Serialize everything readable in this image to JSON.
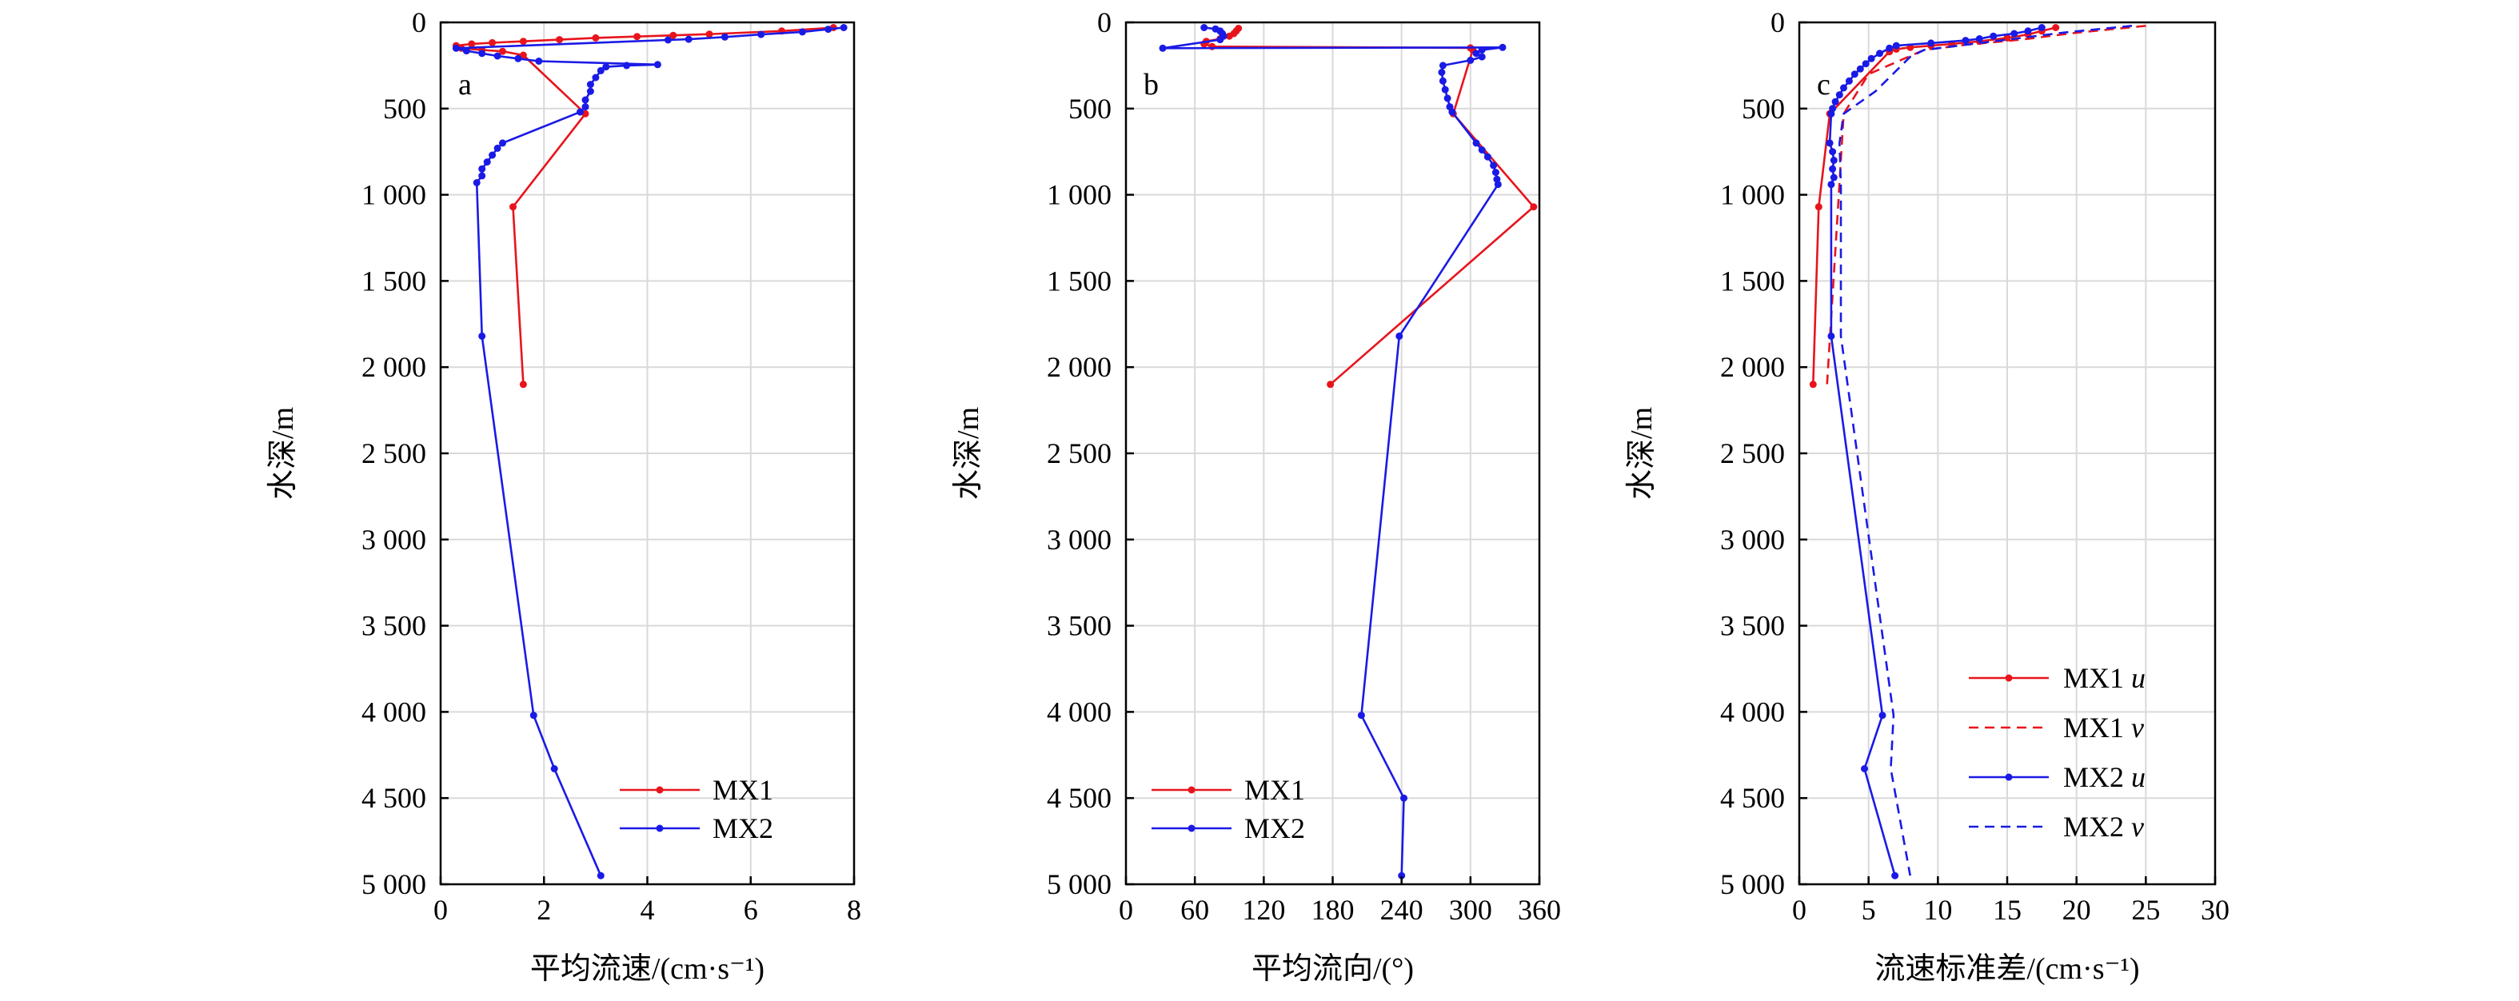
{
  "chart_data": [
    {
      "type": "line",
      "panel_label": "a",
      "xlabel": "平均流速/(cm·s⁻¹)",
      "ylabel": "水深/m",
      "xlim": [
        0,
        8
      ],
      "ylim": [
        0,
        5000
      ],
      "y_inverted": true,
      "grid": true,
      "legend_position": "bottom-right",
      "x_ticks": [
        0,
        2,
        4,
        6,
        8
      ],
      "x_tick_labels": [
        "0",
        "2",
        "4",
        "6",
        "8"
      ],
      "y_ticks": [
        0,
        500,
        1000,
        1500,
        2000,
        2500,
        3000,
        3500,
        4000,
        4500,
        5000
      ],
      "y_tick_labels": [
        "0",
        "500",
        "1 000",
        "1 500",
        "2 000",
        "2 500",
        "3 000",
        "3 500",
        "4 000",
        "4 500",
        "5 000"
      ],
      "series": [
        {
          "name": "MX1",
          "color": "#e8141c",
          "dash": false,
          "marker": true,
          "points": [
            [
              7.6,
              30
            ],
            [
              6.6,
              50
            ],
            [
              5.2,
              68
            ],
            [
              4.5,
              75
            ],
            [
              3.8,
              82
            ],
            [
              3.0,
              90
            ],
            [
              2.3,
              100
            ],
            [
              1.6,
              110
            ],
            [
              1.0,
              118
            ],
            [
              0.6,
              125
            ],
            [
              0.3,
              135
            ],
            [
              0.4,
              150
            ],
            [
              0.8,
              160
            ],
            [
              1.2,
              168
            ],
            [
              1.6,
              190
            ],
            [
              2.8,
              530
            ],
            [
              1.4,
              1070
            ],
            [
              1.6,
              2100
            ]
          ]
        },
        {
          "name": "MX2",
          "color": "#1a1ae6",
          "dash": false,
          "marker": true,
          "points": [
            [
              7.8,
              30
            ],
            [
              7.5,
              40
            ],
            [
              7.0,
              55
            ],
            [
              6.2,
              70
            ],
            [
              5.5,
              85
            ],
            [
              4.8,
              98
            ],
            [
              4.4,
              102
            ],
            [
              0.3,
              150
            ],
            [
              0.5,
              165
            ],
            [
              0.8,
              180
            ],
            [
              1.1,
              195
            ],
            [
              1.5,
              210
            ],
            [
              1.9,
              225
            ],
            [
              4.2,
              245
            ],
            [
              3.6,
              250
            ],
            [
              3.2,
              258
            ],
            [
              3.1,
              280
            ],
            [
              3.0,
              320
            ],
            [
              2.9,
              360
            ],
            [
              2.9,
              400
            ],
            [
              2.8,
              450
            ],
            [
              2.8,
              490
            ],
            [
              2.7,
              520
            ],
            [
              1.2,
              700
            ],
            [
              1.1,
              730
            ],
            [
              1.0,
              770
            ],
            [
              0.9,
              810
            ],
            [
              0.8,
              850
            ],
            [
              0.8,
              890
            ],
            [
              0.7,
              930
            ],
            [
              0.8,
              1820
            ],
            [
              1.8,
              4020
            ],
            [
              2.2,
              4330
            ],
            [
              3.1,
              4950
            ]
          ]
        }
      ]
    },
    {
      "type": "line",
      "panel_label": "b",
      "xlabel": "平均流向/(°)",
      "ylabel": "水深/m",
      "xlim": [
        0,
        360
      ],
      "ylim": [
        0,
        5000
      ],
      "y_inverted": true,
      "grid": true,
      "legend_position": "bottom-left",
      "x_ticks": [
        0,
        60,
        120,
        180,
        240,
        300,
        360
      ],
      "x_tick_labels": [
        "0",
        "60",
        "120",
        "180",
        "240",
        "300",
        "360"
      ],
      "y_ticks": [
        0,
        500,
        1000,
        1500,
        2000,
        2500,
        3000,
        3500,
        4000,
        4500,
        5000
      ],
      "y_tick_labels": [
        "0",
        "500",
        "1 000",
        "1 500",
        "2 000",
        "2 500",
        "3 000",
        "3 500",
        "4 000",
        "4 500",
        "5 000"
      ],
      "series": [
        {
          "name": "MX1",
          "color": "#e8141c",
          "dash": false,
          "marker": true,
          "points": [
            [
              98,
              35
            ],
            [
              96,
              50
            ],
            [
              94,
              65
            ],
            [
              90,
              80
            ],
            [
              82,
              95
            ],
            [
              70,
              110
            ],
            [
              68,
              125
            ],
            [
              75,
              140
            ],
            [
              300,
              148
            ],
            [
              302,
              160
            ],
            [
              285,
              530
            ],
            [
              355,
              1070
            ],
            [
              178,
              2100
            ]
          ]
        },
        {
          "name": "MX2",
          "color": "#1a1ae6",
          "dash": false,
          "marker": true,
          "points": [
            [
              68,
              30
            ],
            [
              78,
              38
            ],
            [
              82,
              50
            ],
            [
              84,
              65
            ],
            [
              85,
              80
            ],
            [
              82,
              100
            ],
            [
              32,
              150
            ],
            [
              328,
              145
            ],
            [
              310,
              160
            ],
            [
              305,
              180
            ],
            [
              310,
              200
            ],
            [
              300,
              220
            ],
            [
              276,
              250
            ],
            [
              275,
              290
            ],
            [
              276,
              340
            ],
            [
              278,
              390
            ],
            [
              280,
              440
            ],
            [
              282,
              490
            ],
            [
              284,
              520
            ],
            [
              305,
              700
            ],
            [
              310,
              740
            ],
            [
              315,
              780
            ],
            [
              320,
              830
            ],
            [
              322,
              870
            ],
            [
              323,
              910
            ],
            [
              324,
              940
            ],
            [
              238,
              1820
            ],
            [
              205,
              4020
            ],
            [
              242,
              4500
            ],
            [
              240,
              4950
            ]
          ]
        }
      ]
    },
    {
      "type": "line",
      "panel_label": "c",
      "xlabel": "流速标准差/(cm·s⁻¹)",
      "ylabel": "水深/m",
      "xlim": [
        0,
        30
      ],
      "ylim": [
        0,
        5000
      ],
      "y_inverted": true,
      "grid": true,
      "legend_position": "bottom-right",
      "x_ticks": [
        0,
        5,
        10,
        15,
        20,
        25,
        30
      ],
      "x_tick_labels": [
        "0",
        "5",
        "10",
        "15",
        "20",
        "25",
        "30"
      ],
      "y_ticks": [
        0,
        500,
        1000,
        1500,
        2000,
        2500,
        3000,
        3500,
        4000,
        4500,
        5000
      ],
      "y_tick_labels": [
        "0",
        "500",
        "1 000",
        "1 500",
        "2 000",
        "2 500",
        "3 000",
        "3 500",
        "4 000",
        "4 500",
        "5 000"
      ],
      "series": [
        {
          "name": "MX1 u",
          "legend_prefix": "MX1 ",
          "legend_italic": "u",
          "color": "#e8141c",
          "dash": false,
          "marker": true,
          "points": [
            [
              18.5,
              30
            ],
            [
              17.5,
              50
            ],
            [
              16.5,
              70
            ],
            [
              15.0,
              90
            ],
            [
              13.0,
              110
            ],
            [
              11.0,
              125
            ],
            [
              9.5,
              135
            ],
            [
              8.0,
              145
            ],
            [
              7.0,
              155
            ],
            [
              6.5,
              170
            ],
            [
              2.2,
              530
            ],
            [
              1.4,
              1070
            ],
            [
              1.0,
              2100
            ]
          ]
        },
        {
          "name": "MX1 v",
          "legend_prefix": "MX1 ",
          "legend_italic": "v",
          "color": "#e8141c",
          "dash": true,
          "marker": false,
          "points": [
            [
              25,
              20
            ],
            [
              20,
              60
            ],
            [
              16,
              100
            ],
            [
              12,
              130
            ],
            [
              9,
              160
            ],
            [
              5,
              300
            ],
            [
              3.2,
              530
            ],
            [
              2.8,
              1070
            ],
            [
              2.0,
              2100
            ]
          ]
        },
        {
          "name": "MX2 u",
          "legend_prefix": "MX2 ",
          "legend_italic": "u",
          "color": "#1a1ae6",
          "dash": false,
          "marker": true,
          "points": [
            [
              17.5,
              30
            ],
            [
              16.5,
              50
            ],
            [
              15.5,
              65
            ],
            [
              14.0,
              80
            ],
            [
              13.0,
              95
            ],
            [
              12.0,
              105
            ],
            [
              9.5,
              120
            ],
            [
              7.0,
              135
            ],
            [
              6.5,
              150
            ],
            [
              5.8,
              180
            ],
            [
              5.2,
              210
            ],
            [
              4.8,
              240
            ],
            [
              4.4,
              270
            ],
            [
              4.0,
              300
            ],
            [
              3.6,
              340
            ],
            [
              3.2,
              380
            ],
            [
              2.9,
              420
            ],
            [
              2.6,
              460
            ],
            [
              2.4,
              500
            ],
            [
              2.3,
              530
            ],
            [
              2.2,
              700
            ],
            [
              2.4,
              750
            ],
            [
              2.5,
              800
            ],
            [
              2.4,
              850
            ],
            [
              2.5,
              900
            ],
            [
              2.3,
              940
            ],
            [
              2.3,
              1820
            ],
            [
              6.0,
              4020
            ],
            [
              4.7,
              4330
            ],
            [
              6.9,
              4950
            ]
          ]
        },
        {
          "name": "MX2 v",
          "legend_prefix": "MX2 ",
          "legend_italic": "v",
          "color": "#1a1ae6",
          "dash": true,
          "marker": false,
          "points": [
            [
              24,
              20
            ],
            [
              19,
              60
            ],
            [
              15,
              100
            ],
            [
              12,
              130
            ],
            [
              9,
              160
            ],
            [
              8,
              200
            ],
            [
              5.5,
              400
            ],
            [
              3.2,
              530
            ],
            [
              2.9,
              700
            ],
            [
              3.0,
              940
            ],
            [
              3.0,
              1820
            ],
            [
              6.8,
              4020
            ],
            [
              6.6,
              4330
            ],
            [
              8.0,
              4950
            ]
          ]
        }
      ]
    }
  ]
}
